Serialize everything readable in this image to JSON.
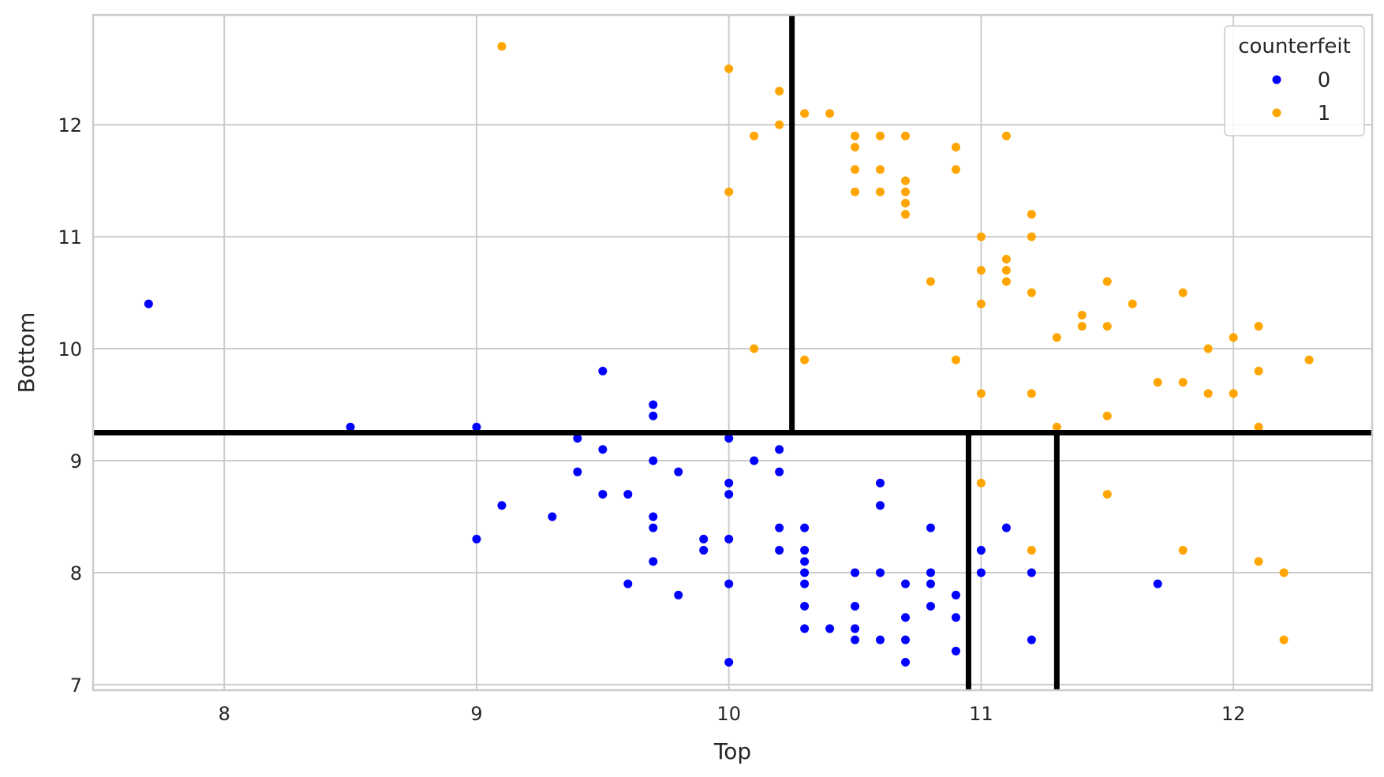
{
  "chart_data": {
    "type": "scatter",
    "title": "",
    "xlabel": "Top",
    "ylabel": "Bottom",
    "xlim": [
      7.48,
      12.55
    ],
    "ylim": [
      6.95,
      12.98
    ],
    "xticks": [
      8,
      9,
      10,
      11,
      12
    ],
    "yticks": [
      7,
      8,
      9,
      10,
      11,
      12
    ],
    "grid": true,
    "legend": {
      "title": "counterfeit",
      "placement": "top-right"
    },
    "series": [
      {
        "name": "0",
        "color": "#0000ff",
        "points": [
          [
            7.7,
            10.4
          ],
          [
            8.5,
            9.3
          ],
          [
            9.0,
            9.3
          ],
          [
            9.0,
            8.3
          ],
          [
            9.1,
            8.6
          ],
          [
            9.3,
            8.5
          ],
          [
            9.4,
            9.2
          ],
          [
            9.4,
            8.9
          ],
          [
            9.5,
            9.8
          ],
          [
            9.5,
            9.1
          ],
          [
            9.5,
            8.7
          ],
          [
            9.6,
            8.7
          ],
          [
            9.6,
            7.9
          ],
          [
            9.7,
            9.5
          ],
          [
            9.7,
            9.4
          ],
          [
            9.7,
            9.0
          ],
          [
            9.7,
            8.5
          ],
          [
            9.7,
            8.4
          ],
          [
            9.7,
            8.1
          ],
          [
            9.8,
            8.9
          ],
          [
            9.8,
            7.8
          ],
          [
            9.9,
            8.3
          ],
          [
            9.9,
            8.2
          ],
          [
            10.0,
            9.2
          ],
          [
            10.0,
            8.8
          ],
          [
            10.0,
            8.7
          ],
          [
            10.0,
            8.3
          ],
          [
            10.0,
            7.9
          ],
          [
            10.0,
            7.2
          ],
          [
            10.1,
            9.0
          ],
          [
            10.2,
            9.1
          ],
          [
            10.2,
            8.9
          ],
          [
            10.2,
            8.4
          ],
          [
            10.2,
            8.2
          ],
          [
            10.3,
            8.4
          ],
          [
            10.3,
            8.2
          ],
          [
            10.3,
            8.1
          ],
          [
            10.3,
            8.0
          ],
          [
            10.3,
            7.9
          ],
          [
            10.3,
            7.7
          ],
          [
            10.3,
            7.5
          ],
          [
            10.4,
            7.5
          ],
          [
            10.5,
            8.0
          ],
          [
            10.5,
            7.7
          ],
          [
            10.5,
            7.5
          ],
          [
            10.5,
            7.4
          ],
          [
            10.6,
            8.8
          ],
          [
            10.6,
            8.6
          ],
          [
            10.6,
            8.0
          ],
          [
            10.6,
            7.4
          ],
          [
            10.7,
            7.9
          ],
          [
            10.7,
            7.6
          ],
          [
            10.7,
            7.4
          ],
          [
            10.7,
            7.2
          ],
          [
            10.8,
            8.4
          ],
          [
            10.8,
            8.0
          ],
          [
            10.8,
            7.9
          ],
          [
            10.8,
            7.7
          ],
          [
            10.9,
            7.8
          ],
          [
            10.9,
            7.6
          ],
          [
            10.9,
            7.3
          ],
          [
            11.0,
            8.2
          ],
          [
            11.0,
            8.0
          ],
          [
            11.1,
            8.4
          ],
          [
            11.2,
            8.0
          ],
          [
            11.2,
            7.4
          ],
          [
            11.7,
            7.9
          ]
        ]
      },
      {
        "name": "1",
        "color": "#ffa500",
        "points": [
          [
            9.1,
            12.7
          ],
          [
            10.0,
            12.5
          ],
          [
            10.0,
            11.4
          ],
          [
            10.1,
            11.9
          ],
          [
            10.1,
            10.0
          ],
          [
            10.2,
            12.3
          ],
          [
            10.2,
            12.0
          ],
          [
            10.3,
            12.1
          ],
          [
            10.3,
            9.9
          ],
          [
            10.4,
            12.1
          ],
          [
            10.5,
            11.9
          ],
          [
            10.5,
            11.8
          ],
          [
            10.5,
            11.6
          ],
          [
            10.5,
            11.4
          ],
          [
            10.6,
            11.9
          ],
          [
            10.6,
            11.6
          ],
          [
            10.6,
            11.4
          ],
          [
            10.7,
            11.9
          ],
          [
            10.7,
            11.5
          ],
          [
            10.7,
            11.4
          ],
          [
            10.7,
            11.3
          ],
          [
            10.7,
            11.2
          ],
          [
            10.8,
            10.6
          ],
          [
            10.9,
            11.8
          ],
          [
            10.9,
            11.6
          ],
          [
            10.9,
            9.9
          ],
          [
            11.0,
            11.0
          ],
          [
            11.0,
            10.7
          ],
          [
            11.0,
            10.4
          ],
          [
            11.0,
            9.6
          ],
          [
            11.0,
            8.8
          ],
          [
            11.1,
            11.9
          ],
          [
            11.1,
            10.8
          ],
          [
            11.1,
            10.7
          ],
          [
            11.1,
            10.6
          ],
          [
            11.2,
            11.2
          ],
          [
            11.2,
            11.0
          ],
          [
            11.2,
            10.5
          ],
          [
            11.2,
            9.6
          ],
          [
            11.2,
            8.2
          ],
          [
            11.3,
            10.1
          ],
          [
            11.3,
            9.3
          ],
          [
            11.4,
            10.3
          ],
          [
            11.4,
            10.2
          ],
          [
            11.5,
            10.6
          ],
          [
            11.5,
            10.2
          ],
          [
            11.5,
            9.4
          ],
          [
            11.5,
            8.7
          ],
          [
            11.6,
            10.4
          ],
          [
            11.7,
            9.7
          ],
          [
            11.8,
            10.5
          ],
          [
            11.8,
            9.7
          ],
          [
            11.8,
            8.2
          ],
          [
            11.9,
            10.0
          ],
          [
            11.9,
            9.6
          ],
          [
            12.0,
            10.1
          ],
          [
            12.0,
            9.6
          ],
          [
            12.1,
            10.2
          ],
          [
            12.1,
            9.8
          ],
          [
            12.1,
            9.3
          ],
          [
            12.1,
            8.1
          ],
          [
            12.2,
            8.0
          ],
          [
            12.2,
            7.4
          ],
          [
            12.3,
            9.9
          ]
        ]
      }
    ],
    "boundaries": {
      "color": "#000000",
      "horizontal": [
        {
          "y": 9.25,
          "x_from": 7.48,
          "x_to": 12.55
        }
      ],
      "vertical": [
        {
          "x": 10.25,
          "y_from": 9.25,
          "y_to": 12.98
        },
        {
          "x": 10.95,
          "y_from": 6.95,
          "y_to": 9.25
        },
        {
          "x": 11.3,
          "y_from": 6.95,
          "y_to": 9.25
        }
      ]
    }
  }
}
